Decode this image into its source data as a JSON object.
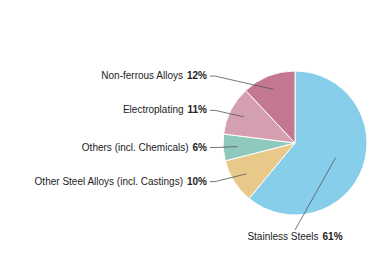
{
  "chart_data": {
    "type": "pie",
    "categories": [
      "Stainless Steels",
      "Other Steel Alloys (incl. Castings)",
      "Others (incl. Chemicals)",
      "Electroplating",
      "Non-ferrous Alloys"
    ],
    "values": [
      61,
      10,
      6,
      11,
      12
    ],
    "value_labels": [
      "61%",
      "10%",
      "6%",
      "11%",
      "12%"
    ],
    "colors": [
      "#87CEEB",
      "#E8C98A",
      "#8FC9BE",
      "#D4A0B0",
      "#C47890"
    ],
    "data_labels": true
  }
}
